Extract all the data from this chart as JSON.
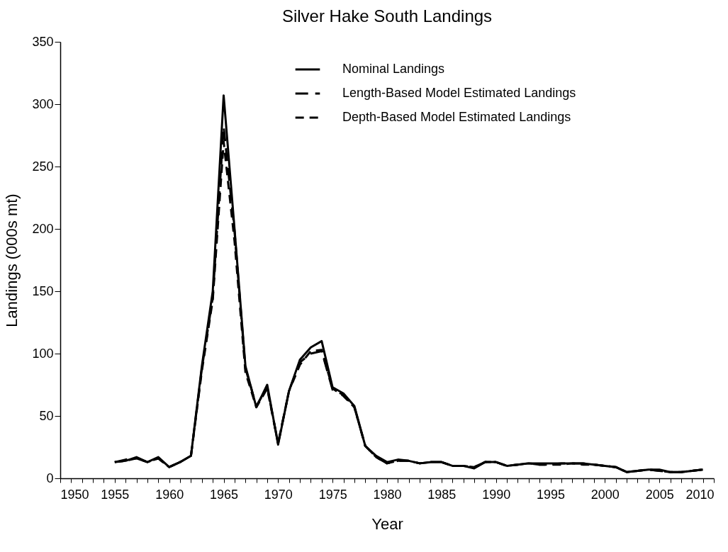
{
  "chart_data": {
    "type": "line",
    "title": "Silver Hake South Landings",
    "xlabel": "Year",
    "ylabel": "Landings (000s mt)",
    "x": [
      1955,
      1956,
      1957,
      1958,
      1959,
      1960,
      1961,
      1962,
      1963,
      1964,
      1965,
      1966,
      1967,
      1968,
      1969,
      1970,
      1971,
      1972,
      1973,
      1974,
      1975,
      1976,
      1977,
      1978,
      1979,
      1980,
      1981,
      1982,
      1983,
      1984,
      1985,
      1986,
      1987,
      1988,
      1989,
      1990,
      1991,
      1992,
      1993,
      1994,
      1995,
      1996,
      1997,
      1998,
      1999,
      2000,
      2001,
      2002,
      2003,
      2004,
      2005,
      2006,
      2007,
      2008,
      2009
    ],
    "series": [
      {
        "name": "Nominal Landings",
        "color": "#000000",
        "line_style": "solid",
        "values": [
          13,
          14,
          17,
          13,
          17,
          9,
          13,
          18,
          90,
          150,
          307,
          200,
          90,
          57,
          75,
          27,
          70,
          95,
          105,
          110,
          73,
          68,
          58,
          26,
          18,
          13,
          15,
          14,
          12,
          13,
          13,
          10,
          10,
          8,
          13,
          13,
          10,
          11,
          12,
          12,
          12,
          12,
          12,
          12,
          11,
          10,
          9,
          5,
          6,
          7,
          7,
          5,
          5,
          6,
          7
        ]
      },
      {
        "name": "Length-Based Model Estimated Landings",
        "color": "#000000",
        "line_style": "dashed",
        "values": [
          13,
          15,
          16,
          13,
          16,
          9,
          13,
          18,
          88,
          145,
          282,
          198,
          88,
          58,
          73,
          28,
          70,
          93,
          100,
          102,
          71,
          67,
          57,
          26,
          17,
          12,
          14,
          14,
          12,
          13,
          13,
          10,
          10,
          9,
          13,
          13,
          10,
          11,
          12,
          11,
          11,
          12,
          12,
          12,
          11,
          10,
          9,
          5,
          6,
          7,
          6,
          5,
          5,
          6,
          7
        ]
      },
      {
        "name": "Depth-Based Model Estimated Landings",
        "color": "#000000",
        "line_style": "dashed",
        "values": [
          13,
          14,
          16,
          13,
          16,
          9,
          13,
          18,
          86,
          143,
          270,
          190,
          85,
          57,
          72,
          28,
          70,
          91,
          102,
          103,
          72,
          66,
          57,
          26,
          17,
          12,
          14,
          14,
          12,
          13,
          13,
          10,
          10,
          9,
          13,
          13,
          10,
          11,
          12,
          11,
          11,
          11,
          12,
          11,
          11,
          10,
          9,
          5,
          6,
          7,
          6,
          5,
          5,
          6,
          7
        ]
      }
    ],
    "xlim": [
      1950,
      2010
    ],
    "xticks": [
      1950,
      {
        "value": 1951,
        "label": null
      },
      {
        "value": 1952,
        "label": null
      },
      {
        "value": 1953,
        "label": null
      },
      {
        "value": 1954,
        "label": null
      },
      1955,
      {
        "value": 1956,
        "label": null
      },
      {
        "value": 1957,
        "label": null
      },
      {
        "value": 1958,
        "label": null
      },
      {
        "value": 1959,
        "label": null
      },
      1960,
      {
        "value": 1961,
        "label": null
      },
      {
        "value": 1962,
        "label": null
      },
      {
        "value": 1963,
        "label": null
      },
      {
        "value": 1964,
        "label": null
      },
      1965,
      {
        "value": 1966,
        "label": null
      },
      {
        "value": 1967,
        "label": null
      },
      {
        "value": 1968,
        "label": null
      },
      {
        "value": 1969,
        "label": null
      },
      1970,
      {
        "value": 1971,
        "label": null
      },
      {
        "value": 1972,
        "label": null
      },
      {
        "value": 1973,
        "label": null
      },
      {
        "value": 1974,
        "label": null
      },
      1975,
      {
        "value": 1976,
        "label": null
      },
      {
        "value": 1977,
        "label": null
      },
      {
        "value": 1978,
        "label": null
      },
      {
        "value": 1979,
        "label": null
      },
      1980,
      {
        "value": 1981,
        "label": null
      },
      {
        "value": 1982,
        "label": null
      },
      {
        "value": 1983,
        "label": null
      },
      {
        "value": 1984,
        "label": null
      },
      1985,
      {
        "value": 1986,
        "label": null
      },
      {
        "value": 1987,
        "label": null
      },
      {
        "value": 1988,
        "label": null
      },
      {
        "value": 1989,
        "label": null
      },
      1990,
      {
        "value": 1991,
        "label": null
      },
      {
        "value": 1992,
        "label": null
      },
      {
        "value": 1993,
        "label": null
      },
      {
        "value": 1994,
        "label": null
      },
      1995,
      {
        "value": 1996,
        "label": null
      },
      {
        "value": 1997,
        "label": null
      },
      {
        "value": 1998,
        "label": null
      },
      {
        "value": 1999,
        "label": null
      },
      2000,
      {
        "value": 2001,
        "label": null
      },
      {
        "value": 2002,
        "label": null
      },
      {
        "value": 2003,
        "label": null
      },
      {
        "value": 2004,
        "label": null
      },
      2005,
      {
        "value": 2006,
        "label": null
      },
      {
        "value": 2007,
        "label": null
      },
      {
        "value": 2008,
        "label": null
      },
      {
        "value": 2009,
        "label": null
      },
      2010
    ],
    "ylim": [
      0,
      350
    ],
    "yticks": [
      0,
      50,
      100,
      150,
      200,
      250,
      300,
      350
    ],
    "grid": false,
    "legend": "top right",
    "marker": "none"
  }
}
